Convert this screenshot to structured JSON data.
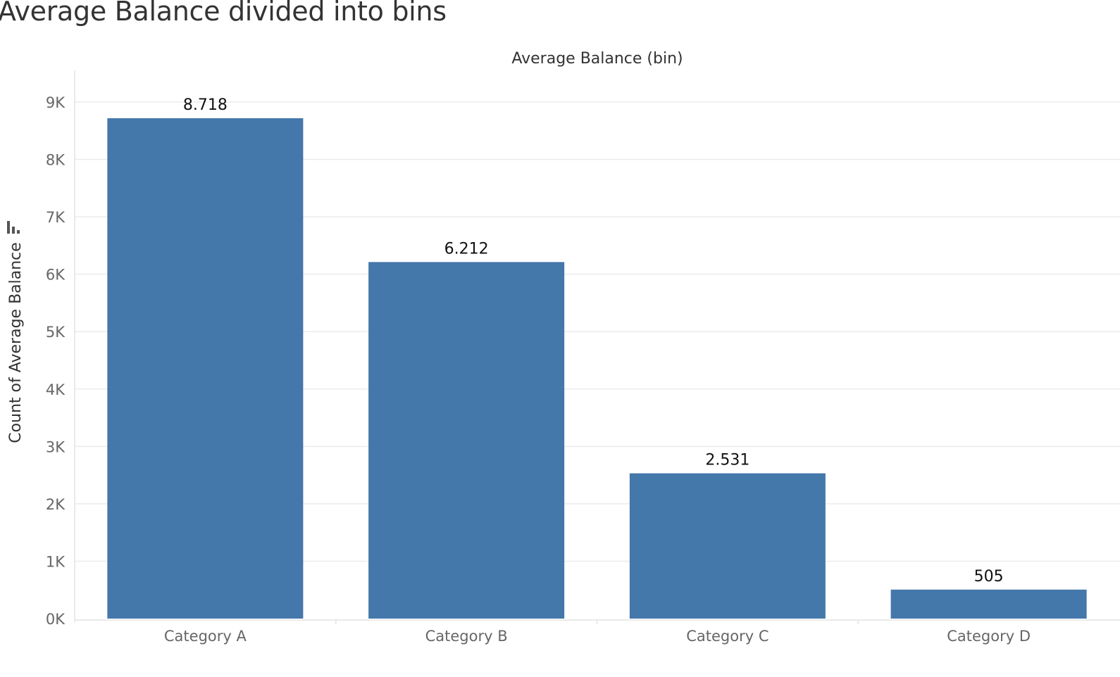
{
  "page": {
    "title": "Average Balance divided into bins"
  },
  "chart_data": {
    "type": "bar",
    "title": "Average Balance divided into bins",
    "xlabel": "Average Balance (bin)",
    "ylabel": "Count of Average Balance",
    "categories": [
      "Category A",
      "Category B",
      "Category C",
      "Category D"
    ],
    "values": [
      8718,
      6212,
      2531,
      505
    ],
    "data_labels": [
      "8.718",
      "6.212",
      "2.531",
      "505"
    ],
    "ylim": [
      0,
      9000
    ],
    "yticks": [
      0,
      1000,
      2000,
      3000,
      4000,
      5000,
      6000,
      7000,
      8000,
      9000
    ],
    "ytick_labels": [
      "0K",
      "1K",
      "2K",
      "3K",
      "4K",
      "5K",
      "6K",
      "7K",
      "8K",
      "9K"
    ],
    "grid": true,
    "legend": "none",
    "bar_color": "#4477aa",
    "y_axis_icon": "sort-icon"
  }
}
